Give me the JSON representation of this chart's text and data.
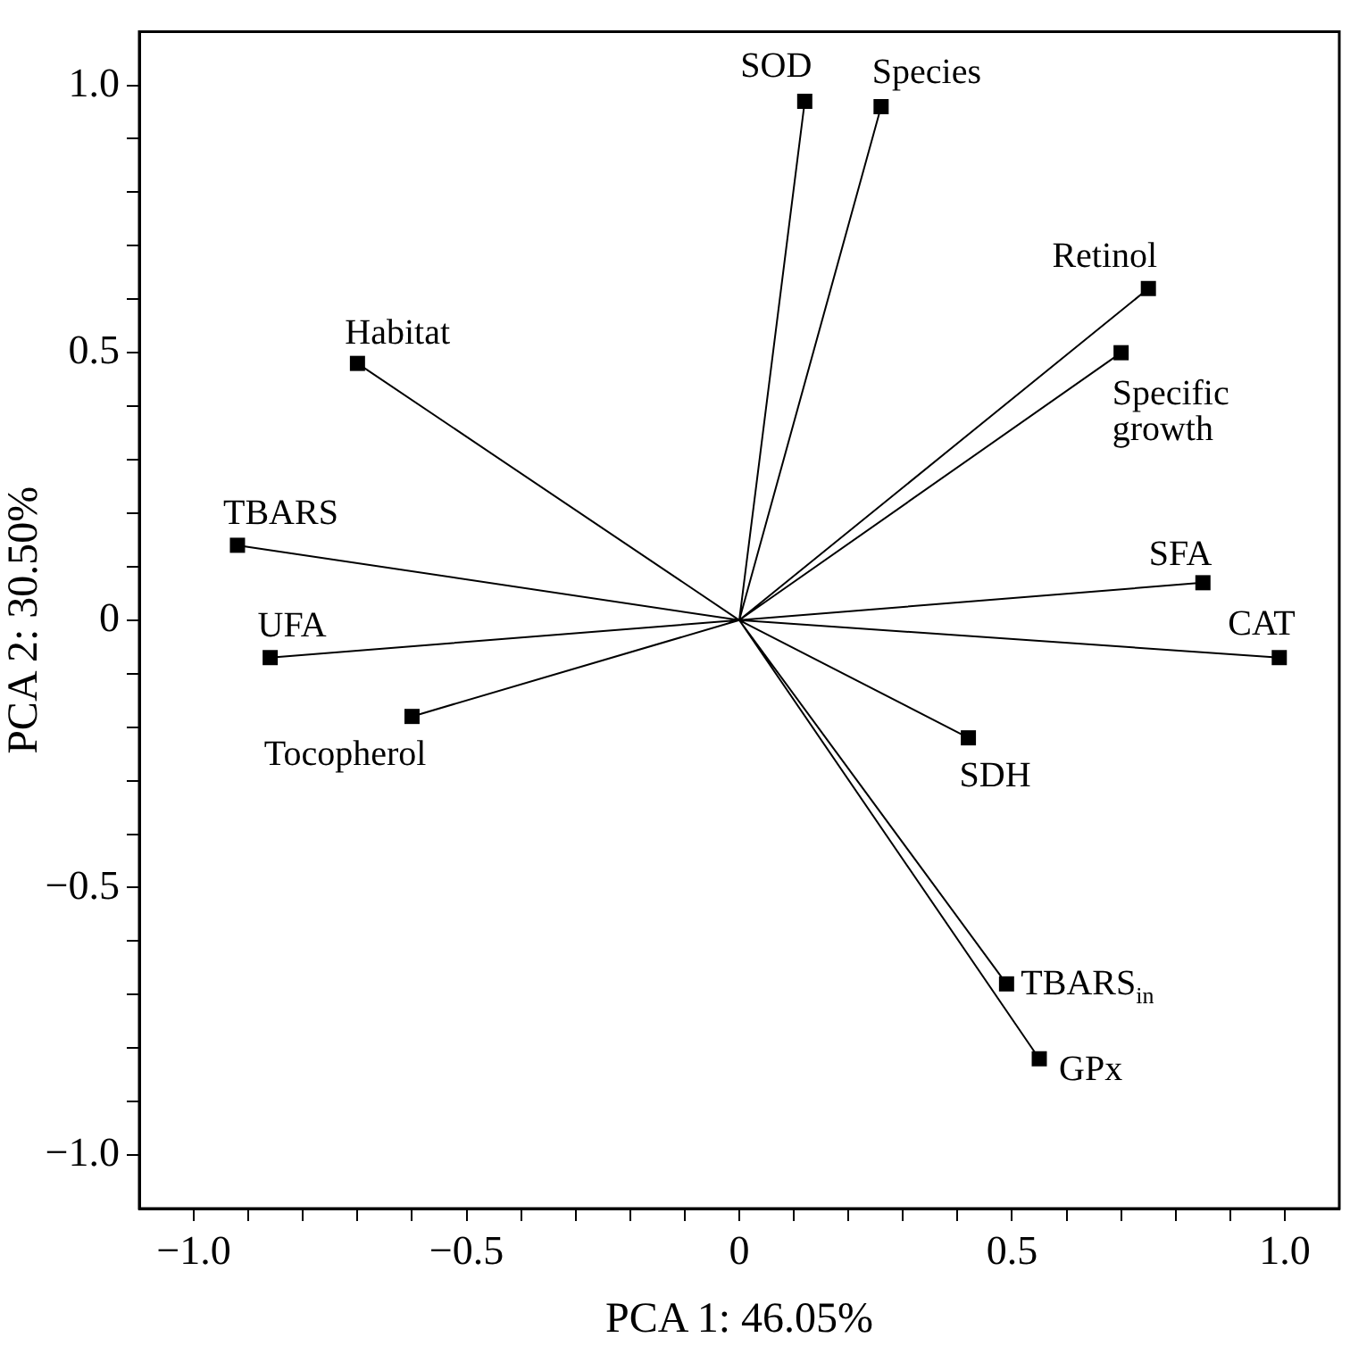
{
  "chart_data": {
    "type": "line",
    "xlabel": "PCA 1: 46.05%",
    "ylabel": "PCA 2: 30.50%",
    "xlim": [
      -1.1,
      1.1
    ],
    "ylim": [
      -1.1,
      1.1
    ],
    "xticks": [
      {
        "value": -1.0,
        "label": "−1.0"
      },
      {
        "value": -0.9,
        "label": null
      },
      {
        "value": -0.8,
        "label": null
      },
      {
        "value": -0.7,
        "label": null
      },
      {
        "value": -0.6,
        "label": null
      },
      {
        "value": -0.5,
        "label": "−0.5"
      },
      {
        "value": -0.4,
        "label": null
      },
      {
        "value": -0.3,
        "label": null
      },
      {
        "value": -0.2,
        "label": null
      },
      {
        "value": -0.1,
        "label": null
      },
      0,
      {
        "value": 0.1,
        "label": null
      },
      {
        "value": 0.2,
        "label": null
      },
      {
        "value": 0.3,
        "label": null
      },
      {
        "value": 0.4,
        "label": null
      },
      0.5,
      {
        "value": 0.6,
        "label": null
      },
      {
        "value": 0.7,
        "label": null
      },
      {
        "value": 0.8,
        "label": null
      },
      {
        "value": 0.9,
        "label": null
      },
      {
        "value": 1.0,
        "label": "1.0"
      }
    ],
    "yticks": [
      {
        "value": -1.0,
        "label": "−1.0"
      },
      {
        "value": -0.9,
        "label": null
      },
      {
        "value": -0.8,
        "label": null
      },
      {
        "value": -0.7,
        "label": null
      },
      {
        "value": -0.6,
        "label": null
      },
      {
        "value": -0.5,
        "label": "−0.5"
      },
      {
        "value": -0.4,
        "label": null
      },
      {
        "value": -0.3,
        "label": null
      },
      {
        "value": -0.2,
        "label": null
      },
      {
        "value": -0.1,
        "label": null
      },
      0,
      {
        "value": 0.1,
        "label": null
      },
      {
        "value": 0.2,
        "label": null
      },
      {
        "value": 0.3,
        "label": null
      },
      {
        "value": 0.4,
        "label": null
      },
      0.5,
      {
        "value": 0.6,
        "label": null
      },
      {
        "value": 0.7,
        "label": null
      },
      {
        "value": 0.8,
        "label": null
      },
      {
        "value": 0.9,
        "label": null
      },
      {
        "value": 1.0,
        "label": "1.0"
      }
    ],
    "grid": false,
    "legend": false,
    "marker": "square",
    "line_style": "solid",
    "series": [
      {
        "color": "#000000",
        "x": [
          0,
          0.12,
          0,
          0.26,
          0,
          0.75,
          0,
          0.7,
          0,
          -0.7,
          0,
          -0.92,
          0,
          -0.86,
          0,
          -0.6,
          0,
          0.85,
          0,
          0.99,
          0,
          0.42,
          0,
          0.49,
          0,
          0.55
        ],
        "values": [
          0,
          0.97,
          0,
          0.96,
          0,
          0.62,
          0,
          0.5,
          0,
          0.48,
          0,
          0.14,
          0,
          -0.07,
          0,
          -0.18,
          0,
          0.07,
          0,
          -0.07,
          0,
          -0.22,
          0,
          -0.68,
          0,
          -0.82
        ]
      }
    ],
    "annotations": [
      {
        "text": "SOD",
        "x": 0.12,
        "y": 0.97
      },
      {
        "text": "Species",
        "x": 0.26,
        "y": 0.96
      },
      {
        "text": "Retinol",
        "x": 0.75,
        "y": 0.62
      },
      {
        "text": "Specific growth",
        "x": 0.7,
        "y": 0.5
      },
      {
        "text": "Habitat",
        "x": -0.7,
        "y": 0.48
      },
      {
        "text": "TBARS",
        "x": -0.92,
        "y": 0.14
      },
      {
        "text": "UFA",
        "x": -0.86,
        "y": -0.07
      },
      {
        "text": "Tocopherol",
        "x": -0.6,
        "y": -0.18
      },
      {
        "text": "SFA",
        "x": 0.85,
        "y": 0.07
      },
      {
        "text": "CAT",
        "x": 0.99,
        "y": -0.07
      },
      {
        "text": "SDH",
        "x": 0.42,
        "y": -0.22
      },
      {
        "text": "TBARS$_{in}$",
        "x": 0.49,
        "y": -0.68
      },
      {
        "text": "GPx",
        "x": 0.55,
        "y": -0.82
      }
    ]
  }
}
